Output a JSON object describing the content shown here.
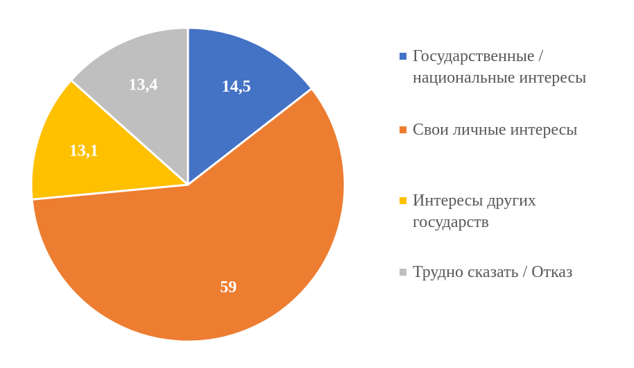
{
  "chart_data": {
    "type": "pie",
    "title": "",
    "slices": [
      {
        "label": "Государственные / национальные интересы",
        "value": 14.5,
        "display": "14,5",
        "color": "#4472C4"
      },
      {
        "label": "Свои личные интересы",
        "value": 59,
        "display": "59",
        "color": "#ED7D31"
      },
      {
        "label": "Интересы других государств",
        "value": 13.1,
        "display": "13,1",
        "color": "#FFC000"
      },
      {
        "label": "Трудно сказать / Отказ",
        "value": 13.4,
        "display": "13,4",
        "color": "#BFBFBF"
      }
    ],
    "legend_position": "right",
    "start_angle": "12 o'clock",
    "direction": "clockwise"
  }
}
